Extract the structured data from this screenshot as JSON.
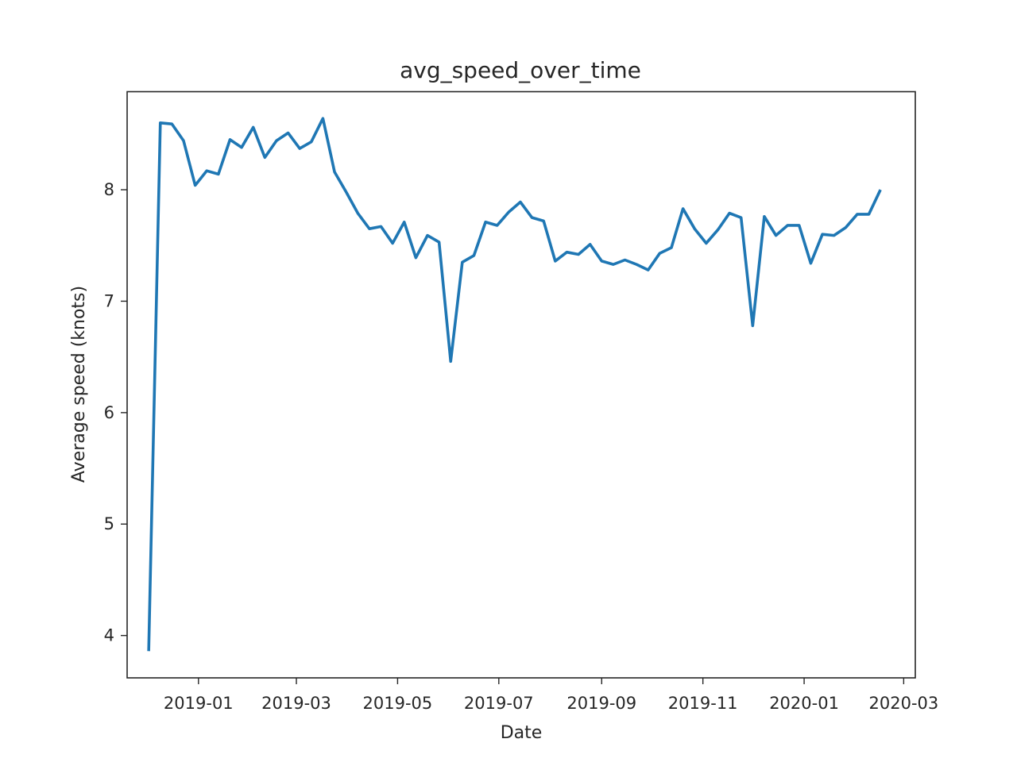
{
  "chart_data": {
    "type": "line",
    "title": "avg_speed_over_time",
    "xlabel": "Date",
    "ylabel": "Average speed (knots)",
    "x_axis": "date",
    "xlim": [
      "2018-11-19",
      "2020-03-08"
    ],
    "ylim": [
      3.62,
      8.88
    ],
    "x_ticks": [
      "2019-01",
      "2019-03",
      "2019-05",
      "2019-07",
      "2019-09",
      "2019-11",
      "2020-01",
      "2020-03"
    ],
    "y_ticks": [
      4,
      5,
      6,
      7,
      8
    ],
    "grid": false,
    "color": "#1f77b4",
    "series": [
      {
        "x": [
          "2018-12-02",
          "2018-12-09",
          "2018-12-16",
          "2018-12-23",
          "2018-12-30",
          "2019-01-06",
          "2019-01-13",
          "2019-01-20",
          "2019-01-27",
          "2019-02-03",
          "2019-02-10",
          "2019-02-17",
          "2019-02-24",
          "2019-03-03",
          "2019-03-10",
          "2019-03-17",
          "2019-03-24",
          "2019-03-31",
          "2019-04-07",
          "2019-04-14",
          "2019-04-21",
          "2019-04-28",
          "2019-05-05",
          "2019-05-12",
          "2019-05-19",
          "2019-05-26",
          "2019-06-02",
          "2019-06-09",
          "2019-06-16",
          "2019-06-23",
          "2019-06-30",
          "2019-07-07",
          "2019-07-14",
          "2019-07-21",
          "2019-07-28",
          "2019-08-04",
          "2019-08-11",
          "2019-08-18",
          "2019-08-25",
          "2019-09-01",
          "2019-09-08",
          "2019-09-15",
          "2019-09-22",
          "2019-09-29",
          "2019-10-06",
          "2019-10-13",
          "2019-10-20",
          "2019-10-27",
          "2019-11-03",
          "2019-11-10",
          "2019-11-17",
          "2019-11-24",
          "2019-12-01",
          "2019-12-08",
          "2019-12-15",
          "2019-12-22",
          "2019-12-29",
          "2020-01-05",
          "2020-01-12",
          "2020-01-19",
          "2020-01-26",
          "2020-02-02",
          "2020-02-09",
          "2020-02-16"
        ],
        "values": [
          3.86,
          8.6,
          8.59,
          8.44,
          8.04,
          8.17,
          8.14,
          8.45,
          8.38,
          8.56,
          8.29,
          8.44,
          8.51,
          8.37,
          8.43,
          8.64,
          8.16,
          7.98,
          7.79,
          7.65,
          7.67,
          7.52,
          7.71,
          7.39,
          7.59,
          7.53,
          6.46,
          7.35,
          7.41,
          7.71,
          7.68,
          7.8,
          7.89,
          7.75,
          7.72,
          7.36,
          7.44,
          7.42,
          7.51,
          7.36,
          7.33,
          7.37,
          7.33,
          7.28,
          7.43,
          7.48,
          7.83,
          7.65,
          7.52,
          7.64,
          7.79,
          7.75,
          6.78,
          7.76,
          7.59,
          7.68,
          7.68,
          7.34,
          7.6,
          7.59,
          7.66,
          7.78,
          7.78,
          8.0
        ]
      }
    ]
  }
}
